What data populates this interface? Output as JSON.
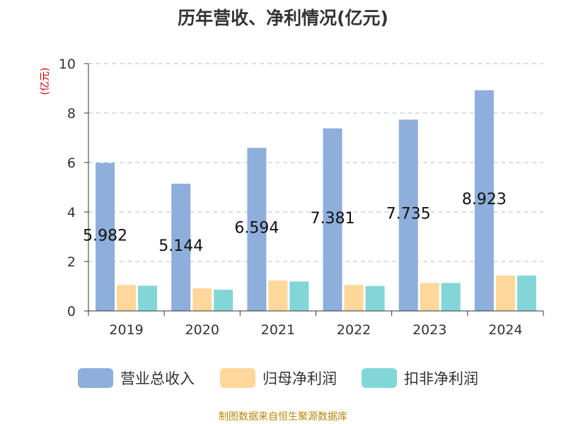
{
  "chart_data": {
    "type": "bar",
    "title": "历年营收、净利情况(亿元)",
    "ylabel": "(亿元)",
    "xlabel": "",
    "categories": [
      "2019",
      "2020",
      "2021",
      "2022",
      "2023",
      "2024"
    ],
    "ylim": [
      0,
      10
    ],
    "yticks": [
      0,
      2,
      4,
      6,
      8,
      10
    ],
    "grid": true,
    "legend_position": "bottom",
    "series": [
      {
        "name": "营业总收入",
        "color": "#8eaedb",
        "values": [
          5.982,
          5.144,
          6.594,
          7.381,
          7.735,
          8.923
        ],
        "labels": [
          "5.982",
          "5.144",
          "6.594",
          "7.381",
          "7.735",
          "8.923"
        ]
      },
      {
        "name": "归母净利润",
        "color": "#fdd89a",
        "values": [
          1.05,
          0.91,
          1.23,
          1.05,
          1.13,
          1.43
        ]
      },
      {
        "name": "扣非净利润",
        "color": "#82d6d8",
        "values": [
          1.02,
          0.86,
          1.19,
          1.01,
          1.13,
          1.43
        ]
      }
    ]
  },
  "footer": "制图数据来自恒生聚源数据库"
}
